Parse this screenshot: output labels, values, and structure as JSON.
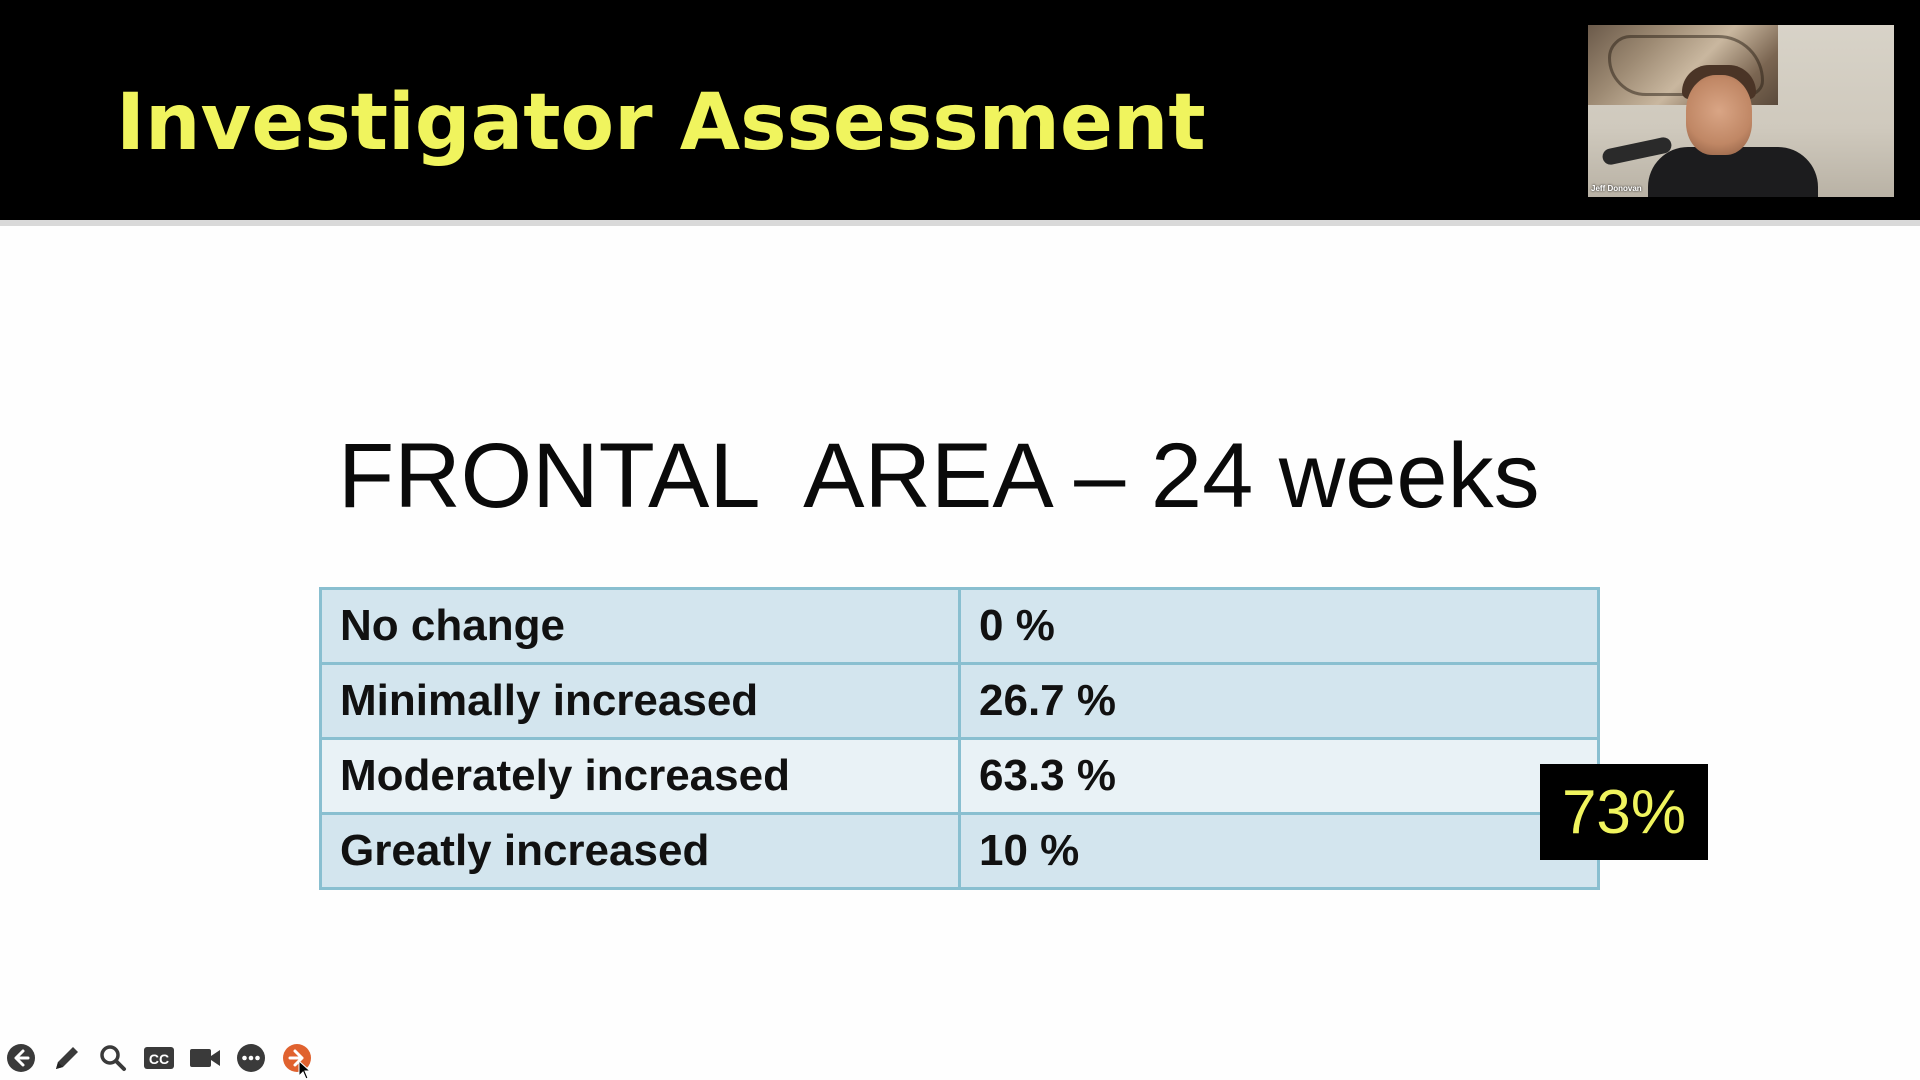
{
  "slide": {
    "title": "Investigator Assessment",
    "subtitle": "FRONTAL  AREA – 24 weeks",
    "callout": "73%"
  },
  "webcam": {
    "participant_name": "Jeff Donovan"
  },
  "table": {
    "rows": [
      {
        "label": "No change",
        "value": "0 %"
      },
      {
        "label": "Minimally increased",
        "value": "26.7 %"
      },
      {
        "label": "Moderately increased",
        "value": "63.3 %"
      },
      {
        "label": "Greatly increased",
        "value": "10 %"
      }
    ]
  },
  "toolbar": {
    "buttons": [
      {
        "name": "previous-slide-button",
        "icon": "arrow-left-circle-icon"
      },
      {
        "name": "pen-button",
        "icon": "pencil-icon"
      },
      {
        "name": "zoom-button",
        "icon": "magnifier-icon"
      },
      {
        "name": "captions-button",
        "icon": "cc-icon"
      },
      {
        "name": "camera-button",
        "icon": "video-camera-icon"
      },
      {
        "name": "more-options-button",
        "icon": "ellipsis-circle-icon"
      },
      {
        "name": "next-slide-button",
        "icon": "arrow-right-circle-icon"
      }
    ],
    "cc_label": "CC"
  },
  "colors": {
    "title": "#f0f45e",
    "header_background": "#000000",
    "table_border": "#89bfd0",
    "table_row_dark": "#d3e5ee",
    "table_row_light": "#e9f2f6",
    "next_button": "#e0622f"
  }
}
